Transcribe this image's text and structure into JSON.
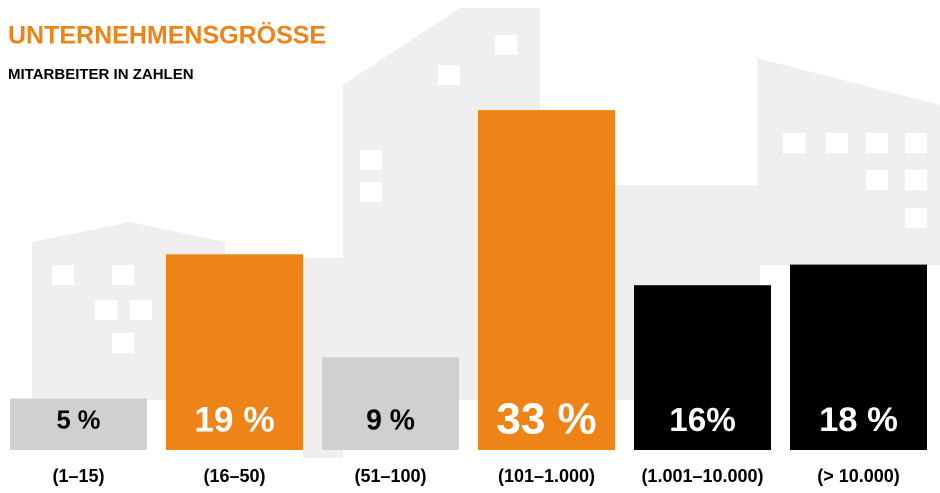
{
  "chart_data": {
    "type": "bar",
    "title": "UNTERNEHMENSGRÖSSE",
    "subtitle": "MITARBEITER IN ZAHLEN",
    "categories": [
      "(1–15)",
      "(16–50)",
      "(51–100)",
      "(101–1.000)",
      "(1.001–10.000)",
      "(> 10.000)"
    ],
    "values": [
      5,
      19,
      9,
      33,
      16,
      18
    ],
    "value_labels": [
      "5 %",
      "19 %",
      "9 %",
      "33 %",
      "16%",
      "18 %"
    ],
    "colors": [
      "#d0d0d0",
      "#ee8418",
      "#d0d0d0",
      "#ee8418",
      "#000000",
      "#000000"
    ]
  }
}
